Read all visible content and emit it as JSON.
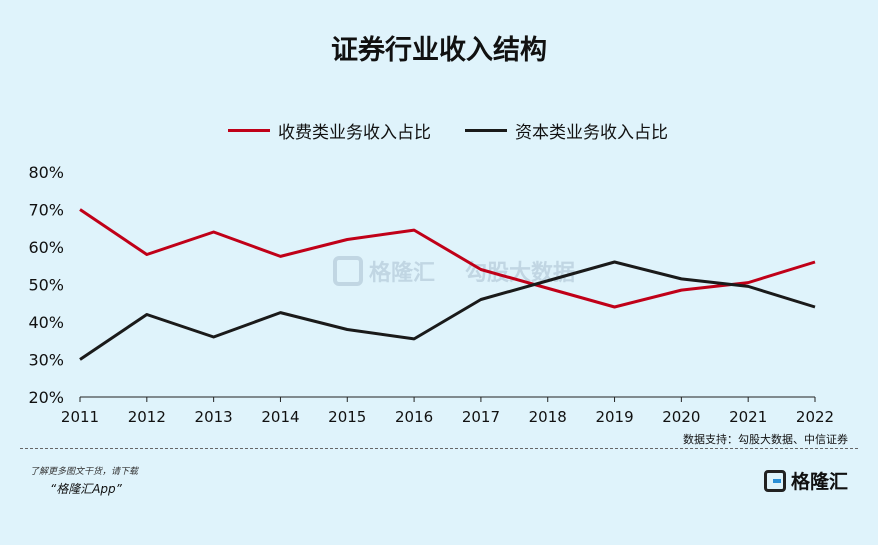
{
  "title": "证券行业收入结构",
  "legend": [
    {
      "label": "收费类业务收入占比",
      "color": "#c00018"
    },
    {
      "label": "资本类业务收入占比",
      "color": "#1a1a1a"
    }
  ],
  "source": "数据支持：勾股大数据、中信证券",
  "footer": {
    "note": "了解更多图文干货，请下载",
    "app": "“格隆汇App”",
    "logo_text": "格隆汇"
  },
  "watermark": {
    "brand": "格隆汇",
    "site": "勾股大数据"
  },
  "chart_data": {
    "type": "line",
    "title": "证券行业收入结构",
    "categories": [
      "2011",
      "2012",
      "2013",
      "2014",
      "2015",
      "2016",
      "2017",
      "2018",
      "2019",
      "2020",
      "2021",
      "2022"
    ],
    "series": [
      {
        "name": "收费类业务收入占比",
        "color": "#c00018",
        "values": [
          70,
          58,
          64,
          57.5,
          62,
          64.5,
          54,
          49,
          44,
          48.5,
          50.5,
          56
        ]
      },
      {
        "name": "资本类业务收入占比",
        "color": "#1a1a1a",
        "values": [
          30,
          42,
          36,
          42.5,
          38,
          35.5,
          46,
          51,
          56,
          51.5,
          49.5,
          44
        ]
      }
    ],
    "ylim": [
      20,
      80
    ],
    "yticks": [
      "20%",
      "30%",
      "40%",
      "50%",
      "60%",
      "70%",
      "80%"
    ],
    "grid": false,
    "legend_position": "top"
  }
}
